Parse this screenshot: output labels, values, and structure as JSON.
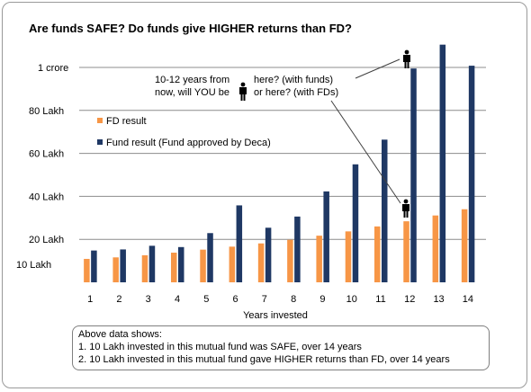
{
  "chart_data": {
    "type": "bar",
    "title": "Are funds SAFE? Do funds give HIGHER returns than FD?",
    "xlabel": "Years invested",
    "ylabel": "",
    "categories": [
      "1",
      "2",
      "3",
      "4",
      "5",
      "6",
      "7",
      "8",
      "9",
      "10",
      "11",
      "12",
      "13",
      "14"
    ],
    "y_tick_labels": [
      {
        "value": 10,
        "label": "10 Lakh"
      },
      {
        "value": 20,
        "label": "20 Lakh"
      },
      {
        "value": 40,
        "label": "40 Lakh"
      },
      {
        "value": 60,
        "label": "60 Lakh"
      },
      {
        "value": 80,
        "label": "80 Lakh"
      },
      {
        "value": 100,
        "label": "1 crore"
      }
    ],
    "gridlines": [
      20,
      40,
      60,
      80,
      100
    ],
    "ylim": [
      0,
      110
    ],
    "series": [
      {
        "name": "FD result",
        "color": "#f79646",
        "values": [
          10.9,
          11.6,
          12.6,
          13.8,
          15.2,
          16.6,
          18.1,
          19.8,
          21.7,
          23.7,
          26.0,
          28.4,
          31.1,
          34.0
        ]
      },
      {
        "name": "Fund result",
        "color": "#1f3864",
        "values": [
          14.8,
          15.3,
          17.0,
          16.4,
          22.9,
          35.8,
          25.4,
          30.6,
          42.3,
          54.9,
          66.4,
          99.5,
          110.6,
          100.8
        ]
      }
    ],
    "legend_note": "(Fund approved by Deca)",
    "annotations": {
      "question": "10-12 years from now, will YOU be",
      "funds_label": "here? (with funds)",
      "fd_label": "or here? (with FDs)"
    },
    "legend_placement": "left"
  },
  "notes": {
    "heading": "Above data shows:",
    "lines": [
      "1. 10 Lakh invested in this mutual fund was SAFE, over 14 years",
      "2. 10 Lakh invested in this mutual fund gave HIGHER returns than FD, over 14 years"
    ]
  }
}
